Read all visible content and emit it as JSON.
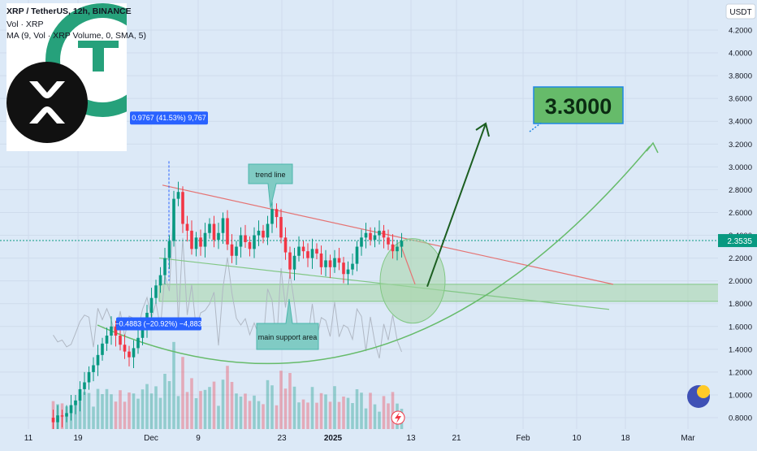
{
  "header": {
    "symbol_line": "XRP / TetherUS, 12h, BINANCE",
    "volume_line": "Vol · XRP",
    "ma_line": "MA (9, Vol · XRP Volume, 0, SMA, 5)"
  },
  "chart_data": {
    "type": "candlestick",
    "title": "XRP / TetherUS, 12h, BINANCE",
    "price_scale_label": "USDT",
    "ylim": [
      0.75,
      4.3
    ],
    "y_ticks": [
      "0.8000",
      "1.0000",
      "1.2000",
      "1.4000",
      "1.6000",
      "1.8000",
      "2.0000",
      "2.2000",
      "2.4000",
      "2.6000",
      "2.8000",
      "3.0000",
      "3.2000",
      "3.4000",
      "3.6000",
      "3.8000",
      "4.0000",
      "4.2000"
    ],
    "x_tick_labels": [
      "11",
      "19",
      "Dec",
      "9",
      "23",
      "2025",
      "13",
      "21",
      "Feb",
      "10",
      "18",
      "Mar"
    ],
    "current_price": "2.3535",
    "price_levels": [
      0.8,
      0.76,
      0.82,
      0.81,
      0.84,
      0.91,
      0.95,
      1.05,
      1.11,
      1.2,
      1.26,
      1.35,
      1.45,
      1.52,
      1.6,
      1.52,
      1.44,
      1.38,
      1.33,
      1.41,
      1.5,
      1.58,
      1.72,
      1.85,
      1.96,
      2.05,
      2.2,
      2.35,
      2.72,
      2.78,
      2.5,
      2.44,
      2.28,
      2.38,
      2.3,
      2.42,
      2.5,
      2.36,
      2.42,
      2.55,
      2.32,
      2.22,
      2.3,
      2.4,
      2.34,
      2.28,
      2.4,
      2.44,
      2.38,
      2.5,
      2.63,
      2.56,
      2.38,
      2.25,
      2.1,
      2.22,
      2.3,
      2.26,
      2.2,
      2.28,
      2.24,
      2.12,
      2.18,
      2.12,
      2.2,
      2.16,
      2.06,
      2.1,
      2.15,
      2.3,
      2.38,
      2.42,
      2.36,
      2.4,
      2.44,
      2.38,
      2.32,
      2.26,
      2.3,
      2.35
    ],
    "annotations": {
      "measure_up": "0.9767 (41.53%) 9,767",
      "measure_down": "−0.4883 (−20.92%) −4,883",
      "trend_line_label": "trend line",
      "support_label": "main support area",
      "target_label": "3.3000"
    },
    "colors": {
      "background": "#dce9f7",
      "up_candle": "#089981",
      "down_candle": "#f23645",
      "trend_line": "#e57373",
      "support_zone": "#a5d6a7",
      "target_box": "#66bb6a",
      "measure_label": "#2962ff",
      "arrow": "#1b5e20"
    }
  }
}
